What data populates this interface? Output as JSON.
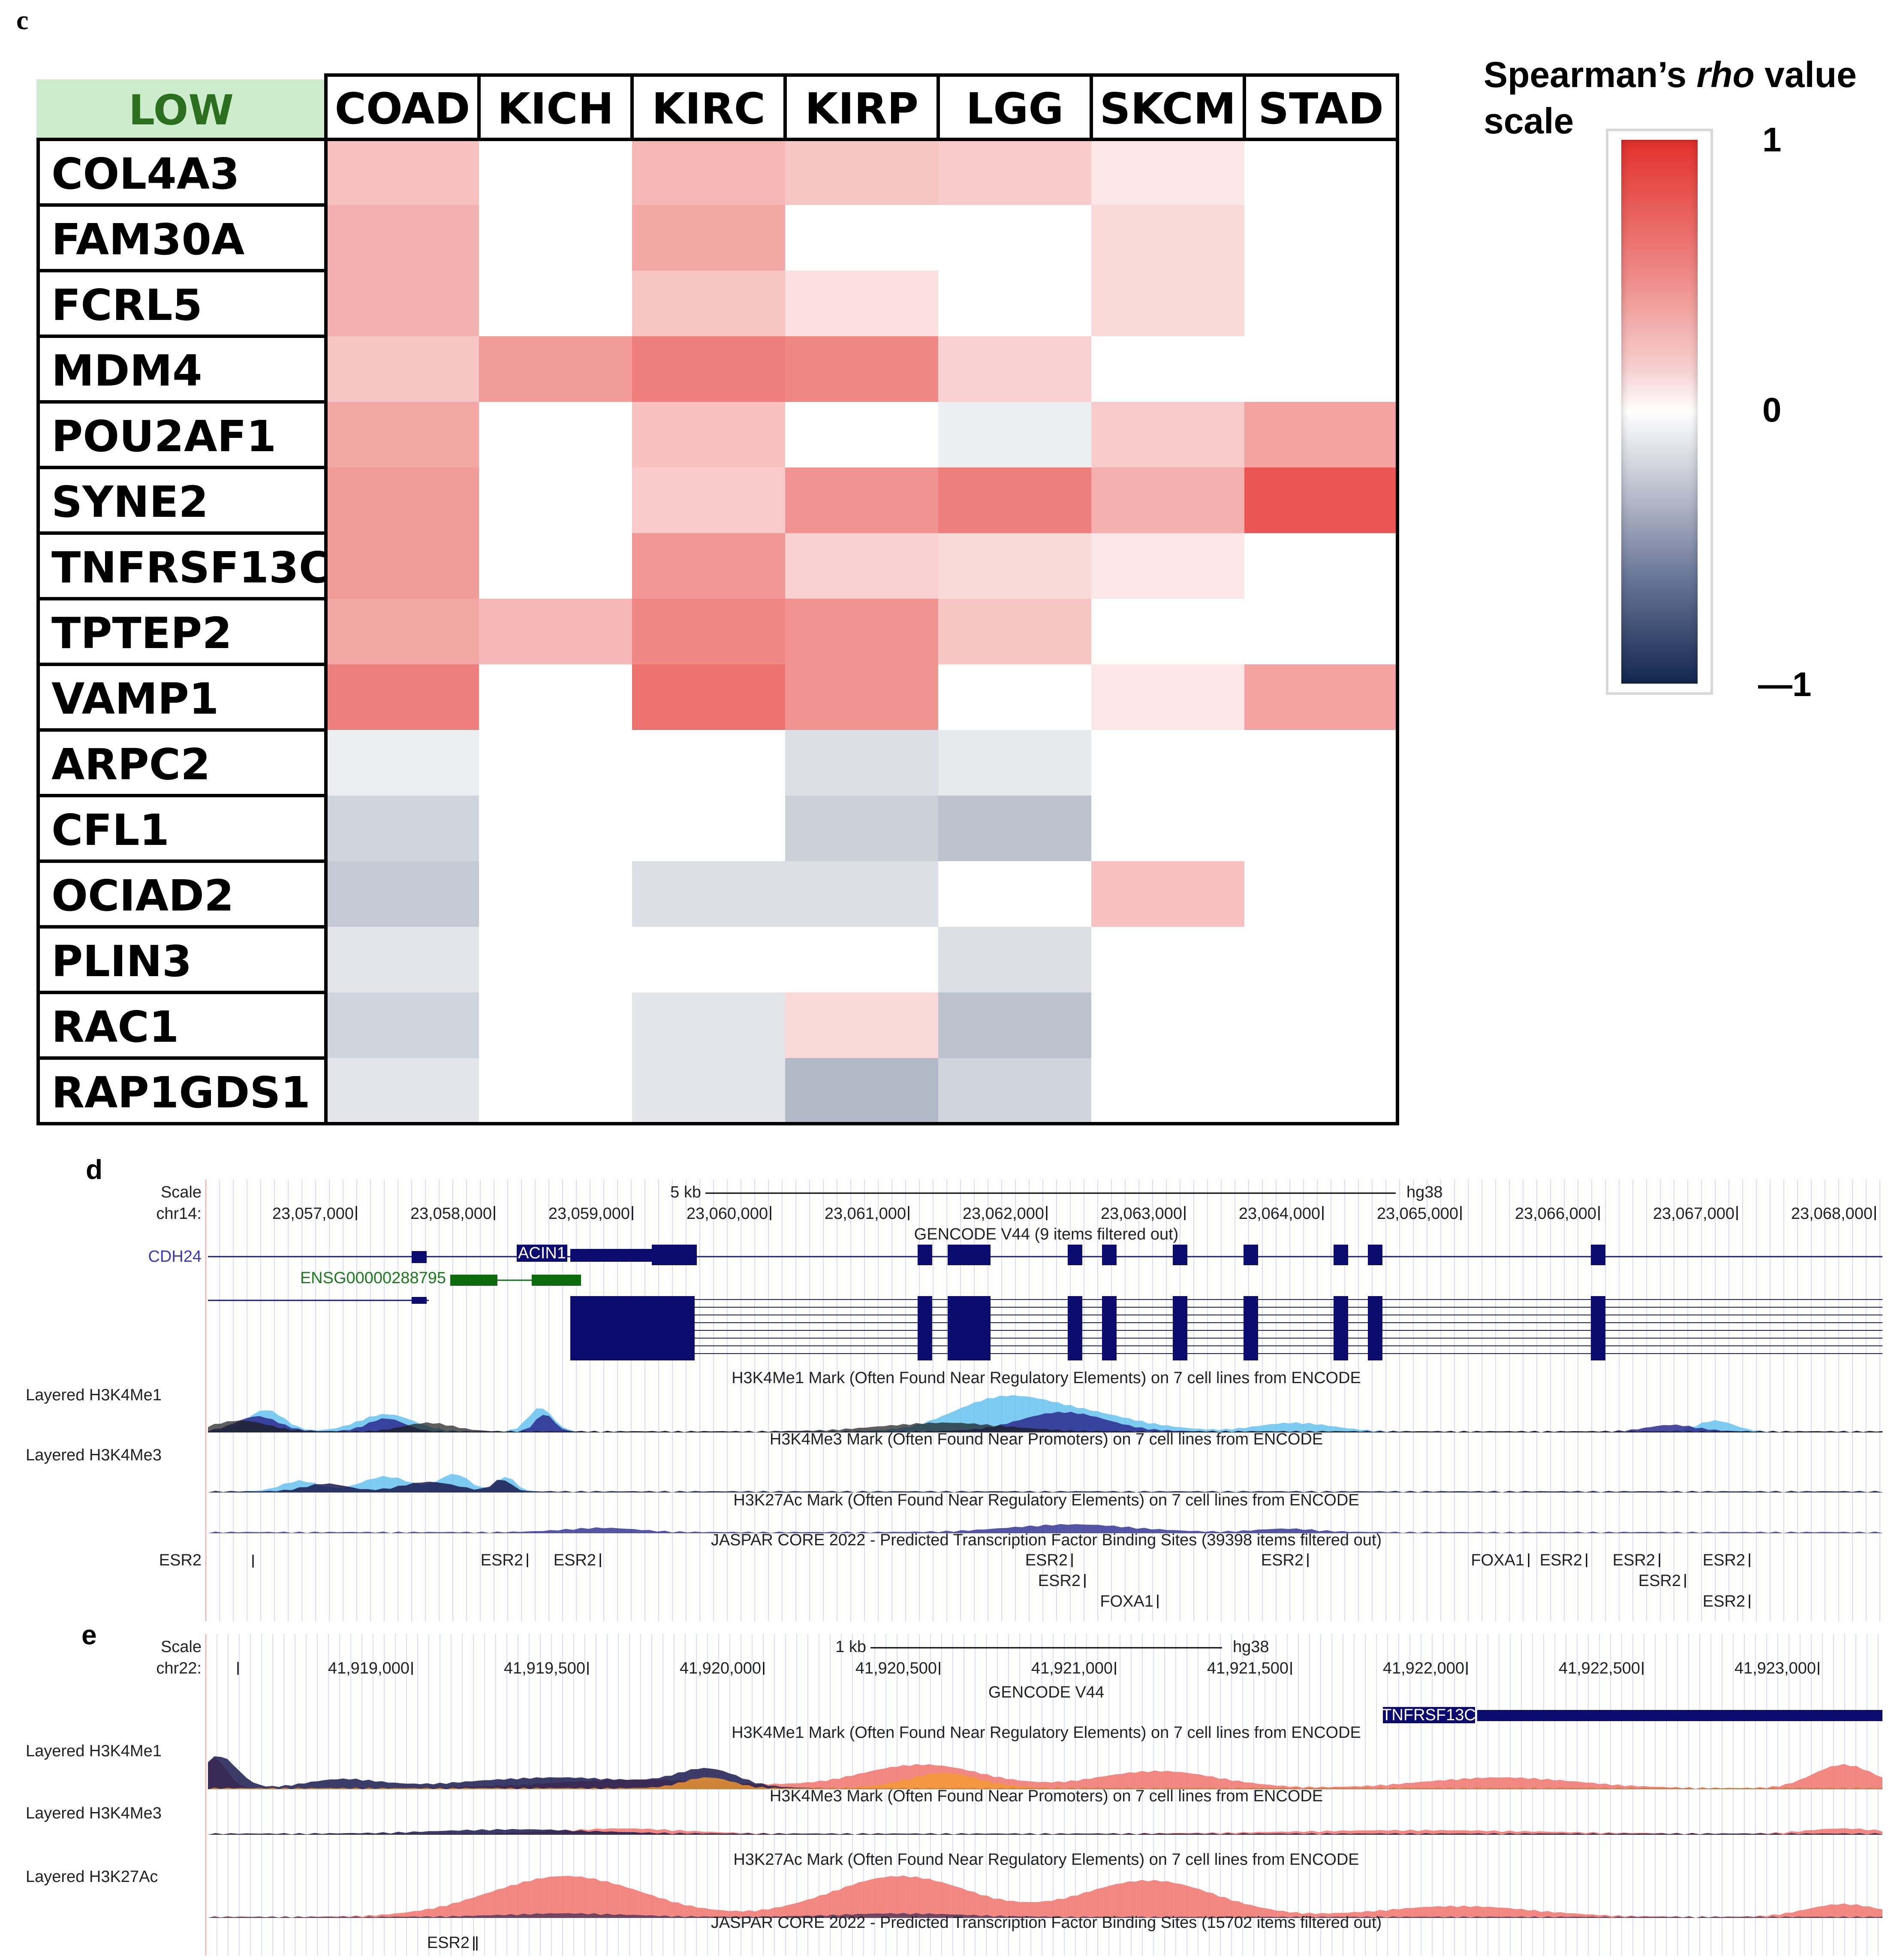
{
  "panels": {
    "c": "c",
    "d": "d",
    "e": "e"
  },
  "heatmap": {
    "corner_label": "LOW",
    "columns": [
      "COAD",
      "KICH",
      "KIRC",
      "KIRP",
      "LGG",
      "SKCM",
      "STAD"
    ],
    "rows": [
      "COL4A3",
      "FAM30A",
      "FCRL5",
      "MDM4",
      "POU2AF1",
      "SYNE2",
      "TNFRSF13C",
      "TPTEP2",
      "VAMP1",
      "ARPC2",
      "CFL1",
      "OCIAD2",
      "PLIN3",
      "RAC1",
      "RAP1GDS1"
    ],
    "values": [
      [
        0.3,
        null,
        0.35,
        0.28,
        0.25,
        0.12,
        null
      ],
      [
        0.38,
        null,
        0.42,
        null,
        null,
        0.18,
        null
      ],
      [
        0.38,
        null,
        0.28,
        0.15,
        null,
        0.18,
        null
      ],
      [
        0.28,
        0.48,
        0.62,
        0.58,
        0.22,
        null,
        null
      ],
      [
        0.42,
        null,
        0.3,
        null,
        -0.08,
        0.25,
        0.45
      ],
      [
        0.48,
        null,
        0.25,
        0.52,
        0.62,
        0.38,
        0.82
      ],
      [
        0.48,
        null,
        0.5,
        0.22,
        0.18,
        0.12,
        null
      ],
      [
        0.42,
        0.35,
        0.58,
        0.52,
        0.28,
        null,
        null
      ],
      [
        0.62,
        null,
        0.68,
        0.52,
        null,
        0.12,
        0.45
      ],
      [
        -0.08,
        null,
        null,
        -0.15,
        -0.1,
        null,
        null
      ],
      [
        -0.2,
        null,
        null,
        -0.22,
        -0.28,
        null,
        null
      ],
      [
        -0.25,
        null,
        -0.15,
        -0.15,
        null,
        0.3,
        null
      ],
      [
        -0.12,
        null,
        null,
        null,
        -0.15,
        null,
        null
      ],
      [
        -0.2,
        null,
        -0.12,
        0.18,
        -0.28,
        null,
        null
      ],
      [
        -0.12,
        null,
        -0.12,
        -0.32,
        -0.2,
        null,
        null
      ]
    ]
  },
  "legend": {
    "title_line1": "Spearman’s",
    "title_italic": "rho",
    "title_line1b": "value",
    "title_line2": "scale",
    "tick_max": "1",
    "tick_mid": "0",
    "tick_min": "—1"
  },
  "panel_d": {
    "scale_label": "Scale",
    "chrom_label": "chr14:",
    "scale_bar": "5 kb",
    "assembly": "hg38",
    "positions": [
      "23,057,000",
      "23,058,000",
      "23,059,000",
      "23,060,000",
      "23,061,000",
      "23,062,000",
      "23,063,000",
      "23,064,000",
      "23,065,000",
      "23,066,000",
      "23,067,000",
      "23,068,000"
    ],
    "gencode_title": "GENCODE V44 (9 items filtered out)",
    "gene_cdh24": "CDH24",
    "gene_acin1": "ACIN1",
    "gene_ensg": "ENSG00000288795",
    "track1_title": "H3K4Me1 Mark (Often Found Near Regulatory Elements) on 7 cell lines from ENCODE",
    "track1_label": "Layered H3K4Me1",
    "track2_title": "H3K4Me3 Mark (Often Found Near Promoters) on 7 cell lines from ENCODE",
    "track2_label": "Layered H3K4Me3",
    "track3_title": "H3K27Ac Mark (Often Found Near Regulatory Elements) on 7 cell lines from ENCODE",
    "jaspar_title": "JASPAR CORE 2022 - Predicted Transcription Factor Binding Sites (39398 items filtered out)",
    "jaspar_label": "ESR2",
    "tfbs": [
      "ESR2",
      "ESR2",
      "ESR2",
      "ESR2",
      "ESR2",
      "ESR2",
      "FOXA1",
      "ESR2",
      "ESR2",
      "ESR2",
      "ESR2",
      "FOXA1",
      "ESR2"
    ]
  },
  "panel_e": {
    "scale_label": "Scale",
    "chrom_label": "chr22:",
    "scale_bar": "1 kb",
    "assembly": "hg38",
    "positions": [
      "41,919,000",
      "41,919,500",
      "41,920,000",
      "41,920,500",
      "41,921,000",
      "41,921,500",
      "41,922,000",
      "41,922,500",
      "41,923,000"
    ],
    "gencode_title": "GENCODE V44",
    "gene_tnfrsf13c": "TNFRSF13C",
    "track1_title": "H3K4Me1 Mark (Often Found Near Regulatory Elements) on 7 cell lines from ENCODE",
    "track1_label": "Layered H3K4Me1",
    "track2_title": "H3K4Me3 Mark (Often Found Near Promoters) on 7 cell lines from ENCODE",
    "track2_label": "Layered H3K4Me3",
    "track3_title": "H3K27Ac Mark (Often Found Near Regulatory Elements) on 7 cell lines from ENCODE",
    "track3_label": "Layered H3K27Ac",
    "jaspar_title": "JASPAR CORE 2022 - Predicted Transcription Factor Binding Sites (15702 items filtered out)",
    "tfbs": [
      "ESR2"
    ]
  }
}
